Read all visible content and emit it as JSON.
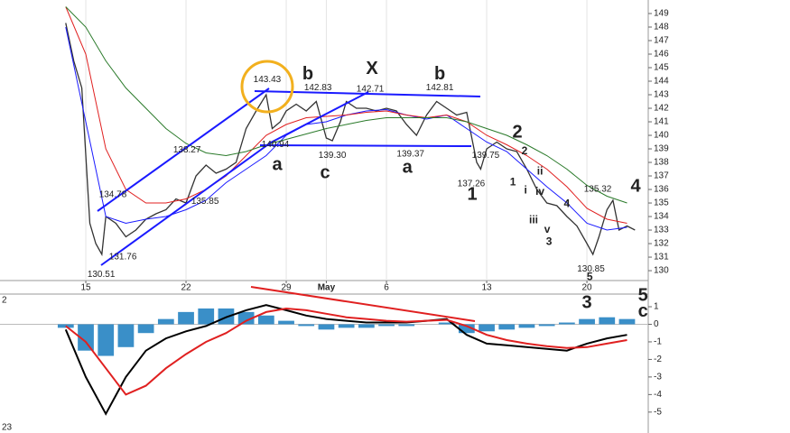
{
  "chart_data": [
    {
      "type": "line",
      "xlim": [
        -4.28,
        28.06
      ],
      "xticks": [
        {
          "value": 0,
          "label": "15"
        },
        {
          "value": 5,
          "label": "22"
        },
        {
          "value": 10,
          "label": "29"
        },
        {
          "value": 12,
          "label": "May"
        },
        {
          "value": 15,
          "label": "6"
        },
        {
          "value": 20,
          "label": "13"
        },
        {
          "value": 25,
          "label": "20"
        }
      ],
      "ylim": [
        129.27,
        150
      ],
      "yticks": [
        130,
        131,
        132,
        133,
        134,
        135,
        136,
        137,
        138,
        139,
        140,
        141,
        142,
        143,
        144,
        145,
        146,
        147,
        148,
        149
      ],
      "grid": true,
      "price": {
        "color": "#333333",
        "x": [
          -1,
          -0.6,
          -0.2,
          0.2,
          0.5,
          0.8,
          1,
          1.5,
          2,
          2.5,
          3,
          3.5,
          4,
          4.5,
          5,
          5.5,
          6,
          6.5,
          7,
          7.5,
          8,
          8.5,
          9,
          9.3,
          9.7,
          10,
          10.5,
          11,
          11.5,
          12,
          12.3,
          12.7,
          13,
          13.5,
          14,
          14.5,
          15,
          15.5,
          16,
          16.5,
          17,
          17.5,
          18,
          18.5,
          19,
          19.5,
          19.7,
          20,
          20.5,
          21,
          21.5,
          22,
          22.5,
          23,
          23.5,
          24,
          24.5,
          25,
          25.3,
          25.6,
          26,
          26.3,
          26.6,
          27,
          27.4
        ],
        "values": [
          148.3,
          145.5,
          143.5,
          133.5,
          132,
          131.2,
          134,
          133.5,
          132.5,
          133,
          133.8,
          134.2,
          134.5,
          135.3,
          135,
          137,
          137.8,
          137.2,
          137.5,
          138,
          140.5,
          141.8,
          143,
          140.5,
          141,
          141.8,
          142.3,
          141.8,
          142.5,
          139.8,
          139.6,
          141,
          142.5,
          142,
          142,
          141.8,
          142,
          141.8,
          140.8,
          140,
          141.5,
          142.5,
          142,
          141.5,
          141.7,
          138,
          137.5,
          139,
          139.5,
          139,
          138.8,
          137.5,
          136,
          135,
          134.8,
          134,
          133.3,
          132,
          131.2,
          132.5,
          134.5,
          135.2,
          133,
          133.3,
          133
        ]
      },
      "x": [
        -1,
        0,
        1,
        2,
        3,
        4,
        5,
        6,
        7,
        8,
        9,
        10,
        11,
        12,
        13,
        14,
        15,
        16,
        17,
        18,
        19,
        20,
        21,
        22,
        23,
        24,
        25,
        26,
        27
      ],
      "series": [
        {
          "color": "#1a1aff",
          "values": [
            148,
            141,
            134,
            133.5,
            133.8,
            134,
            134.5,
            135.2,
            136.5,
            137.5,
            138.5,
            140,
            140.8,
            141,
            141.5,
            141.8,
            141.9,
            141.5,
            141.2,
            141.5,
            140.5,
            139.5,
            138.8,
            137.5,
            136.2,
            135,
            133.5,
            133,
            133.2
          ]
        },
        {
          "color": "#e02020",
          "values": [
            149.5,
            146,
            139,
            136,
            135,
            135,
            135.3,
            136,
            137,
            138.5,
            140,
            140.8,
            141.3,
            141.4,
            141.5,
            141.7,
            141.8,
            141.5,
            141.3,
            141.5,
            141,
            140,
            139.3,
            138.5,
            137.5,
            136.2,
            134.6,
            133.8,
            133.5
          ]
        },
        {
          "color": "#2a7a2a",
          "values": [
            149.5,
            148,
            145.5,
            143.5,
            142,
            140.5,
            139.4,
            138.7,
            138.5,
            138.8,
            139.3,
            139.7,
            140.1,
            140.5,
            140.8,
            141.1,
            141.3,
            141.3,
            141.3,
            141.3,
            141,
            140.5,
            140,
            139.3,
            138.5,
            137.5,
            136.3,
            135.5,
            135
          ]
        }
      ],
      "price_labels": [
        {
          "text": "143.43",
          "x": 9.05,
          "y": 144.1
        },
        {
          "text": "142.83",
          "x": 11.58,
          "y": 143.5
        },
        {
          "text": "142.71",
          "x": 14.19,
          "y": 143.4
        },
        {
          "text": "142.81",
          "x": 17.66,
          "y": 143.5
        },
        {
          "text": "140.94",
          "x": 9.46,
          "y": 139.3
        },
        {
          "text": "139.30",
          "x": 12.3,
          "y": 138.5
        },
        {
          "text": "139.37",
          "x": 16.2,
          "y": 138.6
        },
        {
          "text": "137.26",
          "x": 19.23,
          "y": 136.4
        },
        {
          "text": "139.75",
          "x": 19.95,
          "y": 138.5
        },
        {
          "text": "138.27",
          "x": 5.05,
          "y": 138.9
        },
        {
          "text": "134.78",
          "x": 1.35,
          "y": 135.6
        },
        {
          "text": "135.85",
          "x": 5.95,
          "y": 135.1
        },
        {
          "text": "131.76",
          "x": 1.85,
          "y": 131.0
        },
        {
          "text": "130.51",
          "x": 0.77,
          "y": 129.7
        },
        {
          "text": "135.32",
          "x": 25.54,
          "y": 136.0
        },
        {
          "text": "130.85",
          "x": 25.2,
          "y": 130.1
        }
      ],
      "wave_labels": [
        {
          "text": "b",
          "x": 11.08,
          "y": 144.5,
          "color": "#2ca02c",
          "size": "big"
        },
        {
          "text": "X",
          "x": 14.28,
          "y": 144.9,
          "color": "#2ca02c",
          "size": "big"
        },
        {
          "text": "b",
          "x": 17.66,
          "y": 144.5,
          "color": "#2ca02c",
          "size": "big"
        },
        {
          "text": "a",
          "x": 9.55,
          "y": 137.8,
          "color": "#2ca02c",
          "size": "big"
        },
        {
          "text": "c",
          "x": 11.94,
          "y": 137.2,
          "color": "#2ca02c",
          "size": "big"
        },
        {
          "text": "a",
          "x": 16.04,
          "y": 137.6,
          "color": "#2ca02c",
          "size": "big"
        },
        {
          "text": "1",
          "x": 19.28,
          "y": 135.6,
          "color": "#8e44ad",
          "size": "big"
        },
        {
          "text": "2",
          "x": 21.53,
          "y": 140.2,
          "color": "#8e44ad",
          "size": "big"
        },
        {
          "text": "4",
          "x": 27.43,
          "y": 136.2,
          "color": "#8e44ad",
          "size": "big"
        },
        {
          "text": "1",
          "x": 21.31,
          "y": 136.5,
          "color": "#a0522d",
          "size": "small"
        },
        {
          "text": "2",
          "x": 21.89,
          "y": 138.8,
          "color": "#a0522d",
          "size": "small"
        },
        {
          "text": "i",
          "x": 21.94,
          "y": 135.9,
          "color": "#e67e22",
          "size": "small"
        },
        {
          "text": "ii",
          "x": 22.66,
          "y": 137.3,
          "color": "#e67e22",
          "size": "small"
        },
        {
          "text": "iii",
          "x": 22.34,
          "y": 133.7,
          "color": "#e67e22",
          "size": "small"
        },
        {
          "text": "iv",
          "x": 22.66,
          "y": 135.8,
          "color": "#e67e22",
          "size": "small"
        },
        {
          "text": "v",
          "x": 23.02,
          "y": 133.0,
          "color": "#e67e22",
          "size": "small"
        },
        {
          "text": "3",
          "x": 23.11,
          "y": 132.1,
          "color": "#a0522d",
          "size": "small"
        },
        {
          "text": "4",
          "x": 24.0,
          "y": 134.9,
          "color": "#e67e22",
          "size": "small"
        },
        {
          "text": "5",
          "x": 25.14,
          "y": 129.5,
          "color": "#a0522d",
          "size": "small"
        }
      ]
    },
    {
      "type": "line",
      "xlim": [
        -4.28,
        28.06
      ],
      "ylim": [
        -6.19,
        1.72
      ],
      "yticks": [
        1,
        0,
        -1,
        -2,
        -3,
        -4,
        -5
      ],
      "params": [
        {
          "text": "2",
          "color": "#2a9fd6"
        },
        {
          "text": "23",
          "color": "#e02020"
        }
      ],
      "x": [
        -1,
        0,
        1,
        2,
        3,
        4,
        5,
        6,
        7,
        8,
        9,
        10,
        11,
        12,
        13,
        14,
        15,
        16,
        17,
        18,
        19,
        20,
        21,
        22,
        23,
        24,
        25,
        26,
        27
      ],
      "histogram": {
        "color": "#3a8fc8",
        "values": [
          -0.2,
          -1.5,
          -1.8,
          -1.3,
          -0.5,
          0.3,
          0.7,
          0.9,
          0.9,
          0.7,
          0.5,
          0.2,
          -0.1,
          -0.3,
          -0.2,
          -0.2,
          -0.1,
          -0.1,
          0,
          0.1,
          -0.5,
          -0.4,
          -0.3,
          -0.2,
          -0.1,
          0.1,
          0.3,
          0.4,
          0.3
        ]
      },
      "series": [
        {
          "color": "#000000",
          "values": [
            -0.3,
            -3,
            -5.1,
            -3,
            -1.5,
            -0.8,
            -0.4,
            -0.1,
            0.4,
            0.8,
            1.1,
            0.8,
            0.5,
            0.3,
            0.2,
            0.1,
            0.1,
            0.1,
            0.2,
            0.3,
            -0.6,
            -1.1,
            -1.2,
            -1.3,
            -1.4,
            -1.5,
            -1.1,
            -0.8,
            -0.6
          ]
        },
        {
          "color": "#e02020",
          "values": [
            -0.1,
            -1,
            -2.5,
            -4,
            -3.5,
            -2.5,
            -1.7,
            -1,
            -0.5,
            0.2,
            0.7,
            0.9,
            0.8,
            0.6,
            0.4,
            0.3,
            0.2,
            0.15,
            0.2,
            0.25,
            -0.1,
            -0.6,
            -0.9,
            -1.1,
            -1.25,
            -1.35,
            -1.3,
            -1.1,
            -0.9
          ]
        }
      ],
      "wave_labels": [
        {
          "text": "3",
          "x": 25.0,
          "y": 1.2,
          "color": "#8e44ad",
          "size": "big"
        },
        {
          "text": "5",
          "x": 27.8,
          "y": 1.6,
          "color": "#8e44ad",
          "size": "big"
        },
        {
          "text": "c",
          "x": 27.8,
          "y": 0.7,
          "color": "#2ca02c",
          "size": "big"
        }
      ]
    }
  ]
}
